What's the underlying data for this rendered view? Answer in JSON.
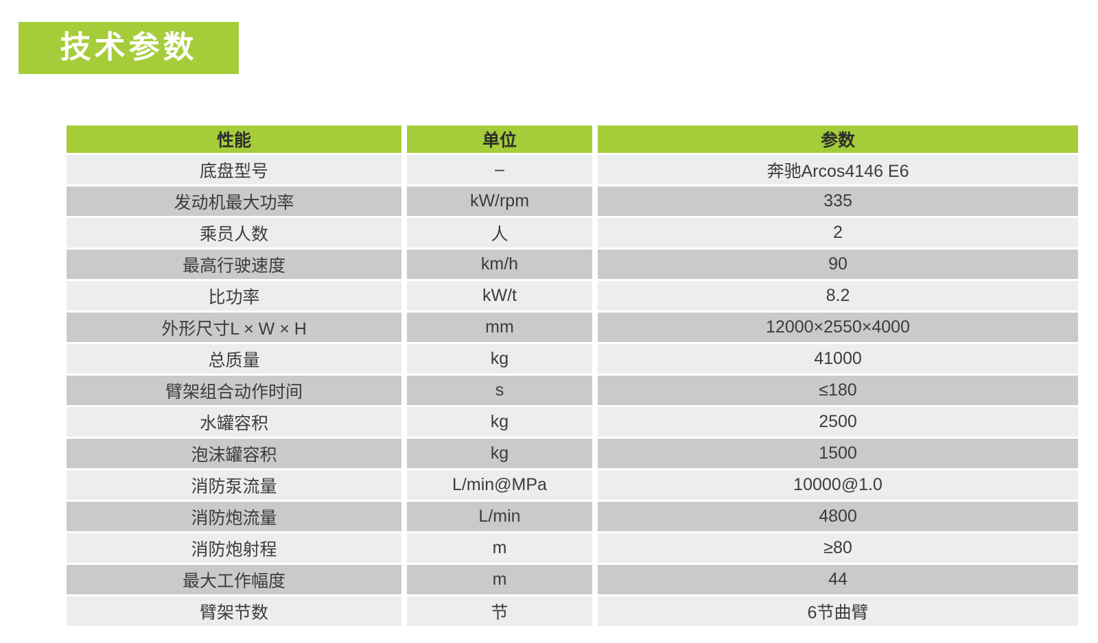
{
  "page": {
    "title": "技术参数",
    "accent_color": "#a5cd39",
    "background_color": "#ffffff",
    "title_text_color": "#ffffff"
  },
  "table": {
    "headers": [
      "性能",
      "单位",
      "参数"
    ],
    "rows": [
      [
        "底盘型号",
        "–",
        "奔驰Arcos4146 E6"
      ],
      [
        "发动机最大功率",
        "kW/rpm",
        "335"
      ],
      [
        "乘员人数",
        "人",
        "2"
      ],
      [
        "最高行驶速度",
        "km/h",
        "90"
      ],
      [
        "比功率",
        "kW/t",
        "8.2"
      ],
      [
        "外形尺寸L × W × H",
        "mm",
        "12000×2550×4000"
      ],
      [
        "总质量",
        "kg",
        "41000"
      ],
      [
        "臂架组合动作时间",
        "s",
        "≤180"
      ],
      [
        "水罐容积",
        "kg",
        "2500"
      ],
      [
        "泡沫罐容积",
        "kg",
        "1500"
      ],
      [
        "消防泵流量",
        "L/min@MPa",
        "10000@1.0"
      ],
      [
        "消防炮流量",
        "L/min",
        "4800"
      ],
      [
        "消防炮射程",
        "m",
        "≥80"
      ],
      [
        "最大工作幅度",
        "m",
        "44"
      ],
      [
        "臂架节数",
        "节",
        "6节曲臂"
      ]
    ],
    "header_bg_color": "#a5cd39",
    "row_light_color": "#ebedee",
    "row_dark_color": "#c9caca",
    "text_color": "#3c3c3c"
  }
}
